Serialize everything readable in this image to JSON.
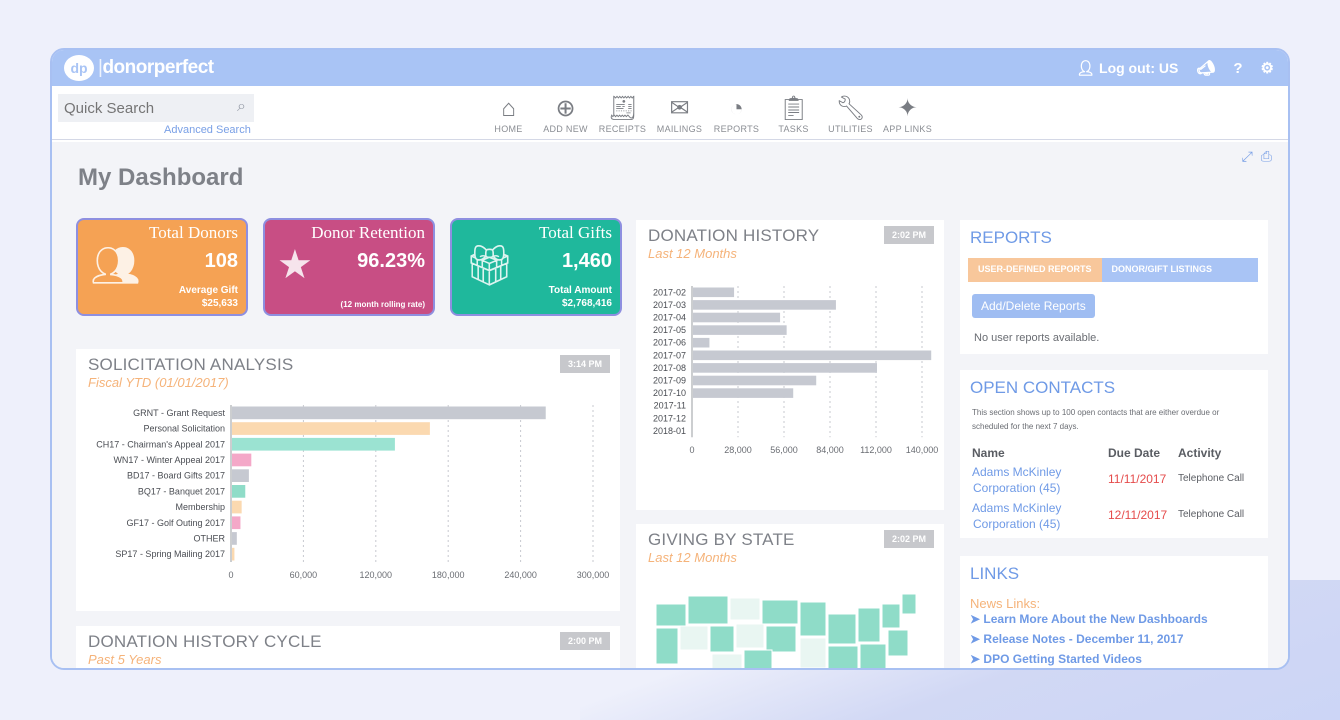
{
  "header": {
    "logo_badge": "dp",
    "logo_word1": "donor",
    "logo_word2": "perfect",
    "logout_label": "Log out: US"
  },
  "search": {
    "placeholder": "Quick Search",
    "advanced": "Advanced Search"
  },
  "nav": {
    "items": [
      {
        "label": "HOME",
        "icon": "home-icon"
      },
      {
        "label": "ADD NEW",
        "icon": "add-icon"
      },
      {
        "label": "RECEIPTS",
        "icon": "receipt-icon"
      },
      {
        "label": "MAILINGS",
        "icon": "mail-icon"
      },
      {
        "label": "REPORTS",
        "icon": "pie-chart-icon"
      },
      {
        "label": "TASKS",
        "icon": "clipboard-icon"
      },
      {
        "label": "UTILITIES",
        "icon": "wrench-icon"
      },
      {
        "label": "APP LINKS",
        "icon": "puzzle-icon"
      }
    ]
  },
  "page": {
    "title": "My Dashboard"
  },
  "kpis": {
    "donors": {
      "title": "Total Donors",
      "value": "108",
      "sub1": "Average Gift",
      "sub2": "$25,633",
      "color": "#f5a254"
    },
    "retention": {
      "title": "Donor Retention",
      "value": "96.23%",
      "sub": "(12 month rolling rate)",
      "color": "#c84e84"
    },
    "gifts": {
      "title": "Total Gifts",
      "value": "1,460",
      "sub1": "Total Amount",
      "sub2": "$2,768,416",
      "color": "#1fb89c"
    }
  },
  "solicitation": {
    "title": "SOLICITATION ANALYSIS",
    "subtitle": "Fiscal YTD (01/01/2017)",
    "time": "3:14 PM",
    "chart_data": {
      "type": "bar",
      "orientation": "horizontal",
      "categories": [
        "GRNT - Grant Request",
        "Personal Solicitation",
        "CH17 - Chairman's Appeal 2017",
        "WN17 - Winter Appeal 2017",
        "BD17 - Board Gifts 2017",
        "BQ17 - Banquet 2017",
        "Membership",
        "GF17 - Golf Outing 2017",
        "OTHER",
        "SP17 - Spring Mailing 2017"
      ],
      "values": [
        260000,
        164000,
        135000,
        16000,
        14000,
        11000,
        8000,
        7000,
        4000,
        2000
      ],
      "colors": [
        "#c6c9d1",
        "#fbd9b0",
        "#9be3d2",
        "#f4a8c8",
        "#c6c9d1",
        "#8fdcc8",
        "#fbd9b0",
        "#f4a8c8",
        "#c6c9d1",
        "#fbd9b0"
      ],
      "xlim": [
        0,
        300000
      ],
      "xticks": [
        "0",
        "60,000",
        "120,000",
        "180,000",
        "240,000",
        "300,000"
      ]
    }
  },
  "donation_history": {
    "title": "DONATION HISTORY",
    "subtitle": "Last 12 Months",
    "time": "2:02 PM",
    "chart_data": {
      "type": "bar",
      "orientation": "horizontal",
      "categories": [
        "2017-02",
        "2017-03",
        "2017-04",
        "2017-05",
        "2017-06",
        "2017-07",
        "2017-08",
        "2017-09",
        "2017-10",
        "2017-11",
        "2017-12",
        "2018-01"
      ],
      "values": [
        25000,
        87000,
        53000,
        57000,
        10000,
        145000,
        112000,
        75000,
        61000,
        0,
        0,
        0
      ],
      "xlim": [
        0,
        140000
      ],
      "xticks": [
        "0",
        "28,000",
        "56,000",
        "84,000",
        "112,000",
        "140,000"
      ]
    }
  },
  "giving_state": {
    "title": "GIVING BY STATE",
    "subtitle": "Last 12 Months",
    "time": "2:02 PM"
  },
  "cycle": {
    "title": "DONATION HISTORY CYCLE",
    "subtitle": "Past 5 Years",
    "time": "2:00 PM"
  },
  "reports": {
    "title": "REPORTS",
    "tab1": "USER-DEFINED REPORTS",
    "tab2": "DONOR/GIFT LISTINGS",
    "button": "Add/Delete Reports",
    "empty": "No user reports available."
  },
  "contacts": {
    "title": "OPEN CONTACTS",
    "desc1": "This section shows up to 100 open contacts that are either overdue or",
    "desc2": "scheduled for the next 7 days.",
    "headers": {
      "name": "Name",
      "due": "Due Date",
      "activity": "Activity"
    },
    "rows": [
      {
        "name1": "Adams McKinley",
        "name2": "Corporation (45)",
        "due": "11/11/2017",
        "activity": "Telephone Call"
      },
      {
        "name1": "Adams McKinley",
        "name2": "Corporation (45)",
        "due": "12/11/2017",
        "activity": "Telephone Call"
      }
    ]
  },
  "links": {
    "title": "LINKS",
    "news": "News Links:",
    "items": [
      "Learn More About the New Dashboards",
      "Release Notes - December 11, 2017",
      "DPO Getting Started Videos"
    ]
  }
}
